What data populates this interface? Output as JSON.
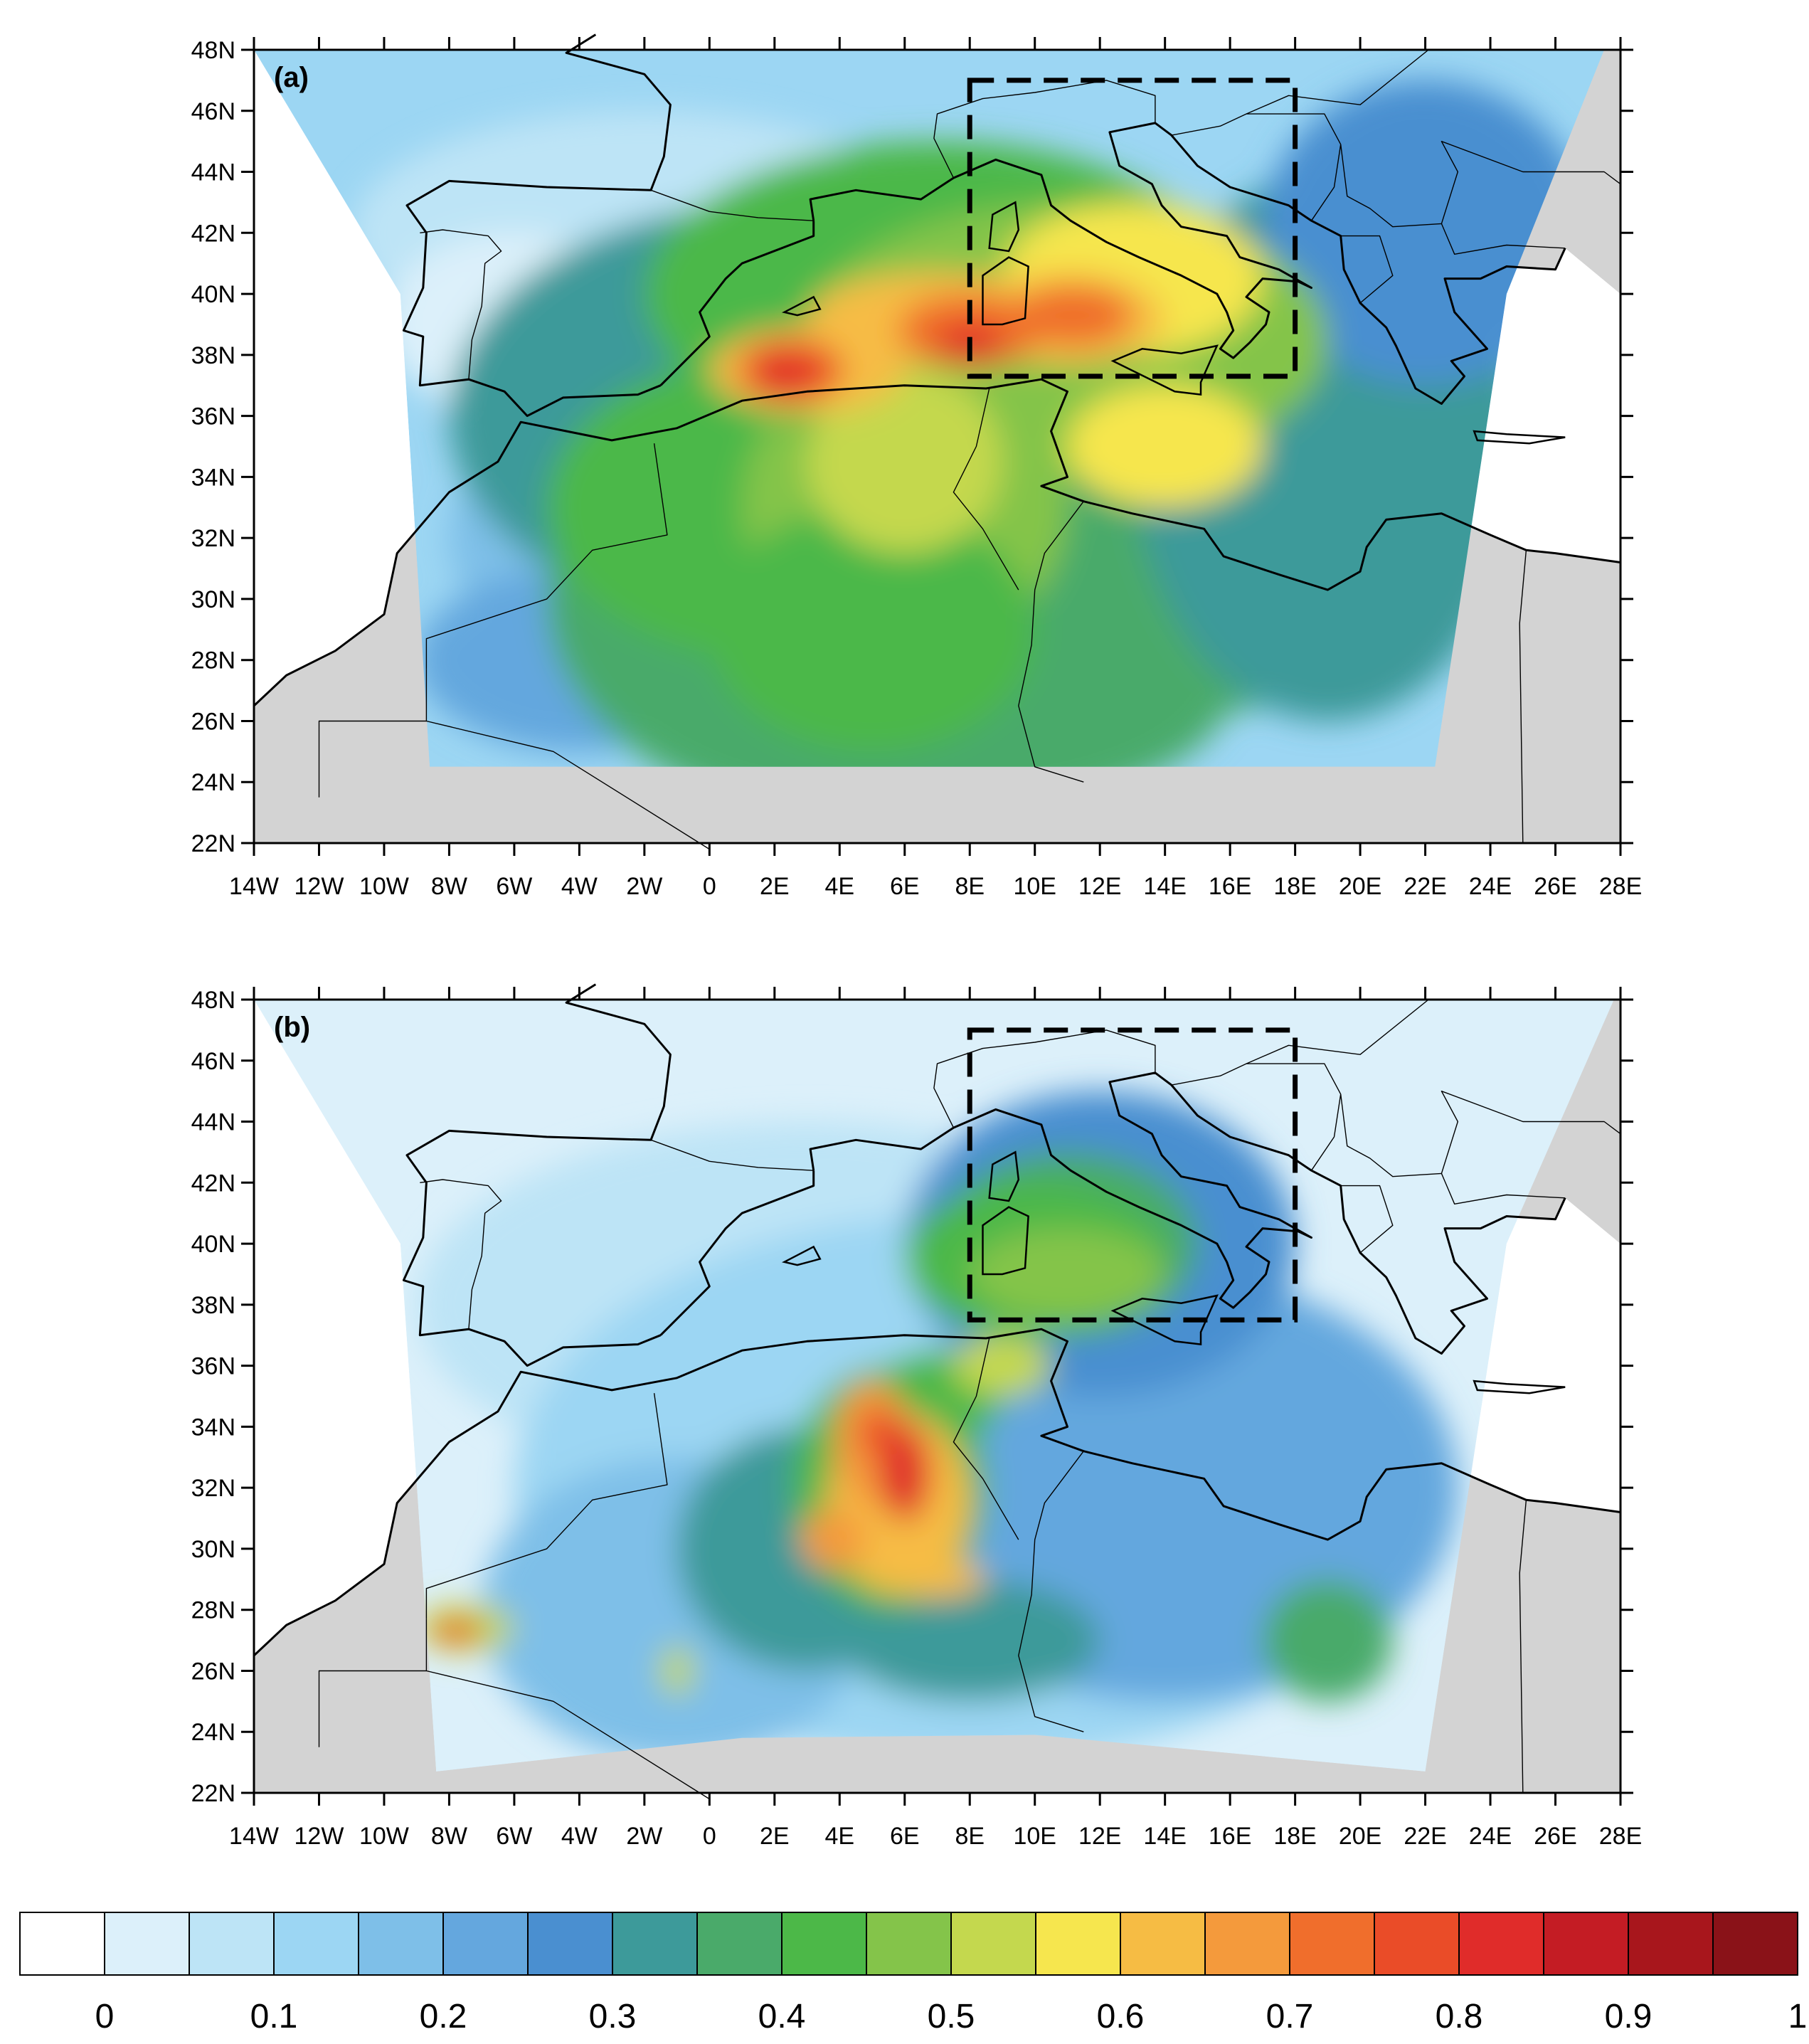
{
  "panels": [
    {
      "label": "(a)"
    },
    {
      "label": "(b)"
    }
  ],
  "axes": {
    "lat_ticks": [
      "48N",
      "46N",
      "44N",
      "42N",
      "40N",
      "38N",
      "36N",
      "34N",
      "32N",
      "30N",
      "28N",
      "26N",
      "24N",
      "22N"
    ],
    "lon_ticks": [
      "14W",
      "12W",
      "10W",
      "8W",
      "6W",
      "4W",
      "2W",
      "0",
      "2E",
      "4E",
      "6E",
      "8E",
      "10E",
      "12E",
      "14E",
      "16E",
      "18E",
      "20E",
      "22E",
      "24E",
      "26E",
      "28E"
    ],
    "lat_range": [
      22,
      48
    ],
    "lon_range": [
      -14,
      28
    ]
  },
  "colorbar": {
    "tick_labels": [
      "0",
      "0.1",
      "0.2",
      "0.3",
      "0.4",
      "0.5",
      "0.6",
      "0.7",
      "0.8",
      "0.9",
      "1"
    ],
    "colors": [
      "#ffffff",
      "#dcf0fa",
      "#bde4f6",
      "#9cd6f3",
      "#7ebfe8",
      "#64a7de",
      "#4a8fd0",
      "#3d9a9a",
      "#4aaa6a",
      "#4cb848",
      "#84c44a",
      "#c4d84e",
      "#f6e64e",
      "#f6bc44",
      "#f49a3c",
      "#f06e2c",
      "#ea4c28",
      "#e02c2a",
      "#c41c24",
      "#a8161c",
      "#8a1218"
    ]
  },
  "box": {
    "lon_min": 8,
    "lon_max": 18,
    "lat_min": 37.5,
    "lat_max": 47
  }
}
